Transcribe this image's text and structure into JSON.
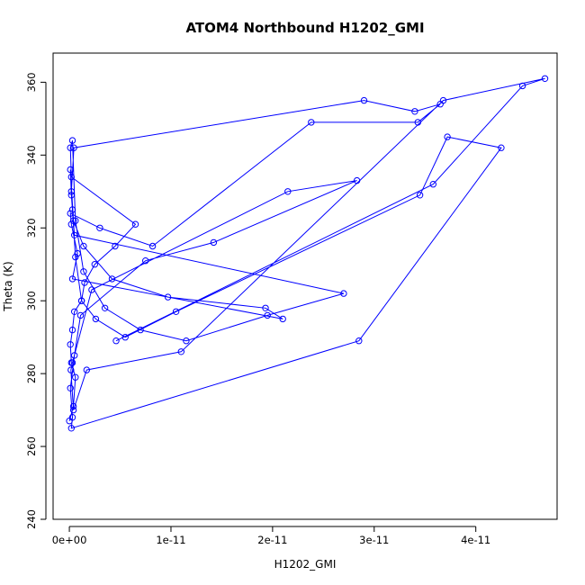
{
  "chart_data": {
    "type": "line",
    "title": "ATOM4 Northbound H1202_GMI",
    "xlabel": "H1202_GMI",
    "ylabel": "Theta (K)",
    "xlim": [
      -1.6e-12,
      4.8e-11
    ],
    "ylim": [
      240,
      368
    ],
    "x_ticks": [
      0,
      1e-11,
      2e-11,
      3e-11,
      4e-11
    ],
    "x_tick_labels": [
      "0e+00",
      "1e-11",
      "2e-11",
      "3e-11",
      "4e-11"
    ],
    "y_ticks": [
      240,
      260,
      280,
      300,
      320,
      340,
      360
    ],
    "y_tick_labels": [
      "240",
      "260",
      "280",
      "300",
      "320",
      "340",
      "360"
    ],
    "grid": false,
    "legend": "none",
    "marker": "open-circle",
    "color": "#0000ff",
    "series": [
      {
        "x": [
          0,
          4e-13,
          6e-13,
          2e-13,
          1e-13,
          3e-13,
          5e-13,
          1.2e-12,
          1.5e-12,
          2.5e-12,
          4.5e-12,
          6.5e-12,
          2e-13,
          1e-13,
          3e-13,
          6e-13,
          1.4e-12,
          3.5e-12,
          7e-12,
          1.15e-11,
          1.95e-11,
          2.7e-11,
          5e-13,
          3e-13,
          2e-13,
          1e-13,
          4e-13,
          1.4e-12,
          4.2e-12,
          9.7e-12,
          1.93e-11,
          2.1e-11,
          3e-13,
          8e-13,
          2e-13,
          1e-13,
          3e-12,
          8.2e-12,
          2.38e-11,
          3.43e-11,
          3.65e-11,
          3.4e-11,
          2.9e-11,
          4.5e-13,
          2e-13,
          6e-13,
          1.2e-12,
          2.6e-12,
          5.5e-12,
          1.05e-11,
          3.45e-11,
          3.72e-11,
          4.25e-11,
          2.85e-11,
          2e-13,
          3e-13,
          1e-13,
          5e-13,
          1.1e-12,
          7.5e-12,
          1.42e-11,
          2.83e-11,
          2.15e-11,
          2.2e-12,
          3e-13,
          1.5e-13,
          4e-13,
          1.7e-12,
          1.1e-11,
          3.68e-11,
          4.68e-11,
          4.46e-11,
          3.58e-11,
          4.6e-12
        ],
        "y": [
          267,
          271,
          279,
          283,
          288,
          292,
          297,
          300,
          305,
          310,
          315,
          321,
          334,
          342,
          344,
          322,
          308,
          298,
          292,
          289,
          296,
          302,
          318,
          325,
          329,
          336,
          322,
          315,
          306,
          301,
          298,
          295,
          306,
          313,
          321,
          324,
          320,
          315,
          349,
          349,
          354,
          352,
          355,
          342,
          330,
          312,
          300,
          295,
          290,
          297,
          329,
          345,
          342,
          289,
          265,
          268,
          276,
          285,
          296,
          311,
          316,
          333,
          330,
          303,
          283,
          281,
          270,
          281,
          286,
          355,
          361,
          359,
          332,
          289
        ]
      }
    ]
  }
}
